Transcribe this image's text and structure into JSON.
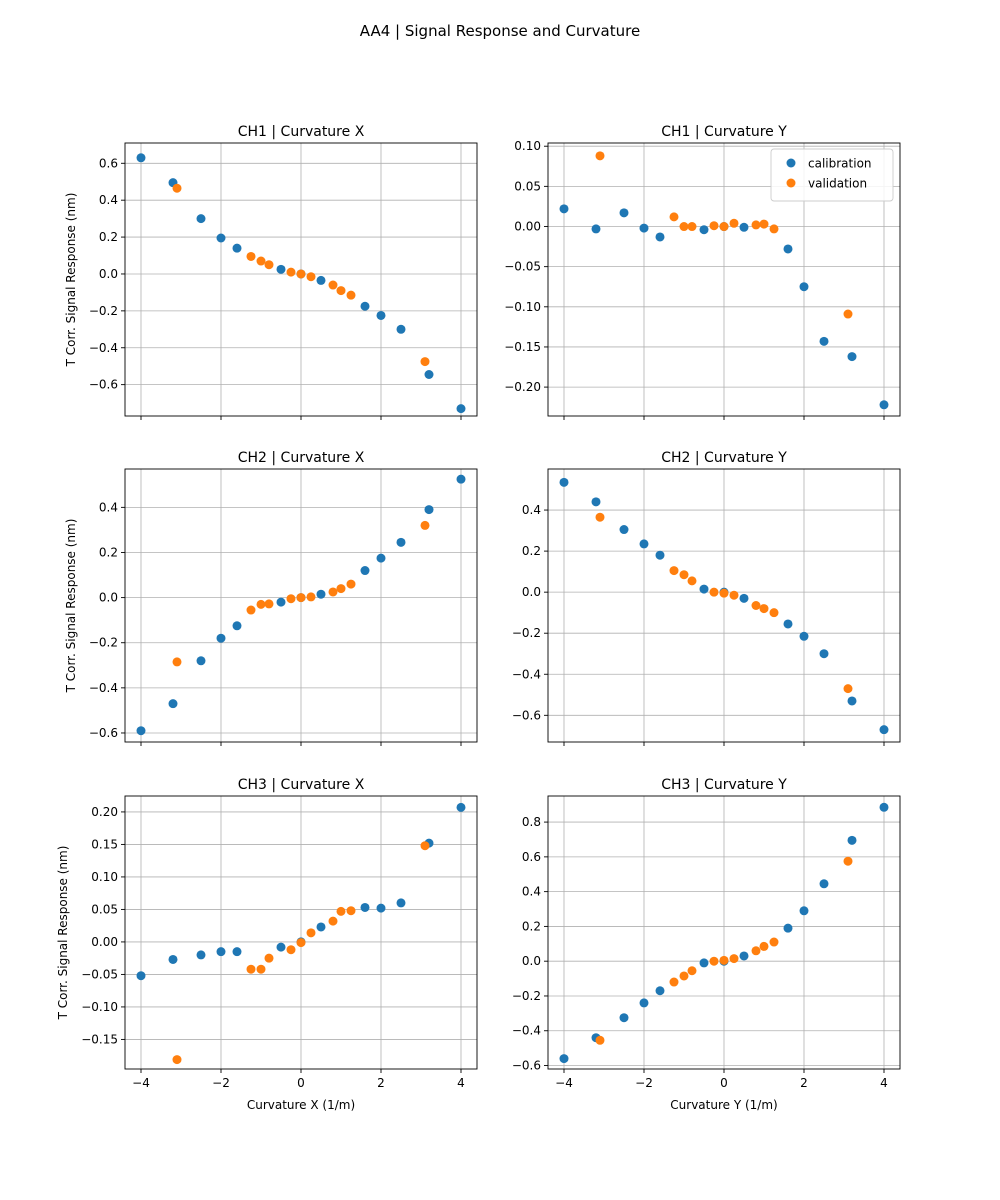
{
  "figure": {
    "title": "AA4 | Signal Response and Curvature",
    "legend": {
      "placement": "upper-right",
      "entries": [
        "calibration",
        "validation"
      ]
    },
    "colors": {
      "calibration": "#1f77b4",
      "validation": "#ff7f0e",
      "grid": "#b0b0b0"
    },
    "grid": true
  },
  "chart_data": [
    {
      "type": "scatter",
      "title": "CH1 | Curvature X",
      "xlabel": "",
      "ylabel": "T Corr. Signal Response (nm)",
      "xlim": [
        -4.4,
        4.4
      ],
      "ylim": [
        -0.77,
        0.71
      ],
      "xticks": [
        -4,
        -2,
        0,
        2,
        4
      ],
      "xtick_labels_visible": false,
      "yticks": [
        -0.6,
        -0.4,
        -0.2,
        0.0,
        0.2,
        0.4,
        0.6
      ],
      "ytick_labels": [
        "−0.6",
        "−0.4",
        "−0.2",
        "0.0",
        "0.2",
        "0.4",
        "0.6"
      ],
      "series": [
        {
          "name": "calibration",
          "x": [
            -4,
            -3.2,
            -2.5,
            -2,
            -1.6,
            -0.5,
            0,
            0.5,
            1.6,
            2,
            2.5,
            3.2,
            4
          ],
          "y": [
            0.63,
            0.495,
            0.3,
            0.195,
            0.14,
            0.025,
            0.0,
            -0.035,
            -0.175,
            -0.225,
            -0.3,
            -0.545,
            -0.73
          ]
        },
        {
          "name": "validation",
          "x": [
            -3.1,
            -1.25,
            -1.0,
            -0.8,
            -0.25,
            0,
            0.25,
            0.8,
            1.0,
            1.25,
            3.1
          ],
          "y": [
            0.465,
            0.095,
            0.07,
            0.05,
            0.01,
            0.0,
            -0.015,
            -0.06,
            -0.09,
            -0.115,
            -0.475
          ]
        }
      ]
    },
    {
      "type": "scatter",
      "title": "CH1 | Curvature Y",
      "xlabel": "",
      "ylabel": "",
      "xlim": [
        -4.4,
        4.4
      ],
      "ylim": [
        -0.236,
        0.104
      ],
      "xticks": [
        -4,
        -2,
        0,
        2,
        4
      ],
      "xtick_labels_visible": false,
      "yticks": [
        -0.2,
        -0.15,
        -0.1,
        -0.05,
        0.0,
        0.05,
        0.1
      ],
      "ytick_labels": [
        "−0.20",
        "−0.15",
        "−0.10",
        "−0.05",
        "0.00",
        "0.05",
        "0.10"
      ],
      "legend": true,
      "series": [
        {
          "name": "calibration",
          "x": [
            -4,
            -3.2,
            -2.5,
            -2,
            -1.6,
            -0.5,
            0,
            0.5,
            1.6,
            2,
            2.5,
            3.2,
            4
          ],
          "y": [
            0.022,
            -0.003,
            0.017,
            -0.002,
            -0.013,
            -0.004,
            0.0,
            -0.001,
            -0.028,
            -0.075,
            -0.143,
            -0.162,
            -0.222
          ]
        },
        {
          "name": "validation",
          "x": [
            -3.1,
            -1.25,
            -1.0,
            -0.8,
            -0.25,
            0,
            0.25,
            0.8,
            1.0,
            1.25,
            3.1
          ],
          "y": [
            0.088,
            0.012,
            0.0,
            0.0,
            0.001,
            0.0,
            0.004,
            0.002,
            0.003,
            -0.003,
            -0.109
          ]
        }
      ]
    },
    {
      "type": "scatter",
      "title": "CH2 | Curvature X",
      "xlabel": "",
      "ylabel": "T Corr. Signal Response (nm)",
      "xlim": [
        -4.4,
        4.4
      ],
      "ylim": [
        -0.64,
        0.57
      ],
      "xticks": [
        -4,
        -2,
        0,
        2,
        4
      ],
      "xtick_labels_visible": false,
      "yticks": [
        -0.6,
        -0.4,
        -0.2,
        0.0,
        0.2,
        0.4
      ],
      "ytick_labels": [
        "−0.6",
        "−0.4",
        "−0.2",
        "0.0",
        "0.2",
        "0.4"
      ],
      "series": [
        {
          "name": "calibration",
          "x": [
            -4,
            -3.2,
            -2.5,
            -2,
            -1.6,
            -0.5,
            0,
            0.5,
            1.6,
            2,
            2.5,
            3.2,
            4
          ],
          "y": [
            -0.59,
            -0.47,
            -0.28,
            -0.18,
            -0.125,
            -0.02,
            0.0,
            0.015,
            0.12,
            0.175,
            0.245,
            0.39,
            0.525
          ]
        },
        {
          "name": "validation",
          "x": [
            -3.1,
            -1.25,
            -1.0,
            -0.8,
            -0.25,
            0,
            0.25,
            0.8,
            1.0,
            1.25,
            3.1
          ],
          "y": [
            -0.285,
            -0.055,
            -0.03,
            -0.028,
            -0.005,
            0.0,
            0.003,
            0.025,
            0.04,
            0.06,
            0.32
          ]
        }
      ]
    },
    {
      "type": "scatter",
      "title": "CH2 | Curvature Y",
      "xlabel": "",
      "ylabel": "",
      "xlim": [
        -4.4,
        4.4
      ],
      "ylim": [
        -0.73,
        0.6
      ],
      "xticks": [
        -4,
        -2,
        0,
        2,
        4
      ],
      "xtick_labels_visible": false,
      "yticks": [
        -0.6,
        -0.4,
        -0.2,
        0.0,
        0.2,
        0.4
      ],
      "ytick_labels": [
        "−0.6",
        "−0.4",
        "−0.2",
        "0.0",
        "0.2",
        "0.4"
      ],
      "series": [
        {
          "name": "calibration",
          "x": [
            -4,
            -3.2,
            -2.5,
            -2,
            -1.6,
            -0.5,
            0,
            0.5,
            1.6,
            2,
            2.5,
            3.2,
            4
          ],
          "y": [
            0.535,
            0.44,
            0.305,
            0.235,
            0.18,
            0.015,
            0.0,
            -0.03,
            -0.155,
            -0.215,
            -0.3,
            -0.53,
            -0.67
          ]
        },
        {
          "name": "validation",
          "x": [
            -3.1,
            -1.25,
            -1.0,
            -0.8,
            -0.25,
            0,
            0.25,
            0.8,
            1.0,
            1.25,
            3.1
          ],
          "y": [
            0.365,
            0.105,
            0.085,
            0.055,
            0.0,
            -0.005,
            -0.015,
            -0.065,
            -0.08,
            -0.1,
            -0.47
          ]
        }
      ]
    },
    {
      "type": "scatter",
      "title": "CH3 | Curvature X",
      "xlabel": "Curvature X (1/m)",
      "ylabel": "T Corr. Signal Response (nm)",
      "xlim": [
        -4.4,
        4.4
      ],
      "ylim": [
        -0.1955,
        0.2245
      ],
      "xticks": [
        -4,
        -2,
        0,
        2,
        4
      ],
      "xtick_labels": [
        "−4",
        "−2",
        "0",
        "2",
        "4"
      ],
      "yticks": [
        -0.15,
        -0.1,
        -0.05,
        0.0,
        0.05,
        0.1,
        0.15,
        0.2
      ],
      "ytick_labels": [
        "−0.15",
        "−0.10",
        "−0.05",
        "0.00",
        "0.05",
        "0.10",
        "0.15",
        "0.20"
      ],
      "series": [
        {
          "name": "calibration",
          "x": [
            -4,
            -3.2,
            -2.5,
            -2,
            -1.6,
            -0.5,
            0,
            0.5,
            1.6,
            2,
            2.5,
            3.2,
            4
          ],
          "y": [
            -0.052,
            -0.027,
            -0.02,
            -0.015,
            -0.015,
            -0.008,
            0.0,
            0.023,
            0.053,
            0.052,
            0.06,
            0.152,
            0.207
          ]
        },
        {
          "name": "validation",
          "x": [
            -3.1,
            -1.25,
            -1.0,
            -0.8,
            -0.25,
            0,
            0.25,
            0.8,
            1.0,
            1.25,
            3.1
          ],
          "y": [
            -0.181,
            -0.042,
            -0.042,
            -0.025,
            -0.012,
            -0.001,
            0.014,
            0.032,
            0.047,
            0.048,
            0.148
          ]
        }
      ]
    },
    {
      "type": "scatter",
      "title": "CH3 | Curvature Y",
      "xlabel": "Curvature Y (1/m)",
      "ylabel": "",
      "xlim": [
        -4.4,
        4.4
      ],
      "ylim": [
        -0.62,
        0.95
      ],
      "xticks": [
        -4,
        -2,
        0,
        2,
        4
      ],
      "xtick_labels": [
        "−4",
        "−2",
        "0",
        "2",
        "4"
      ],
      "yticks": [
        -0.6,
        -0.4,
        -0.2,
        0.0,
        0.2,
        0.4,
        0.6,
        0.8
      ],
      "ytick_labels": [
        "−0.6",
        "−0.4",
        "−0.2",
        "0.0",
        "0.2",
        "0.4",
        "0.6",
        "0.8"
      ],
      "series": [
        {
          "name": "calibration",
          "x": [
            -4,
            -3.2,
            -2.5,
            -2,
            -1.6,
            -0.5,
            0,
            0.5,
            1.6,
            2,
            2.5,
            3.2,
            4
          ],
          "y": [
            -0.56,
            -0.44,
            -0.325,
            -0.24,
            -0.17,
            -0.01,
            0.0,
            0.03,
            0.19,
            0.29,
            0.445,
            0.695,
            0.885
          ]
        },
        {
          "name": "validation",
          "x": [
            -3.1,
            -1.25,
            -1.0,
            -0.8,
            -0.25,
            0,
            0.25,
            0.8,
            1.0,
            1.25,
            3.1
          ],
          "y": [
            -0.455,
            -0.12,
            -0.085,
            -0.055,
            0.0,
            0.005,
            0.015,
            0.06,
            0.085,
            0.11,
            0.575
          ]
        }
      ]
    }
  ]
}
